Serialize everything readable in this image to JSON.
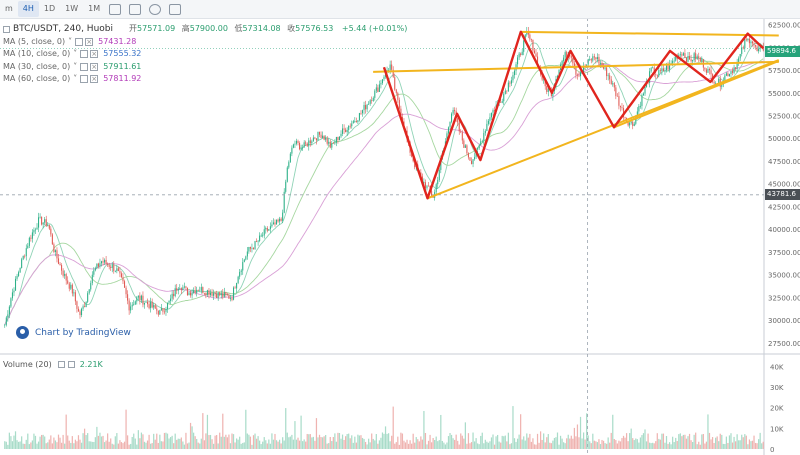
{
  "toolbar": {
    "items": [
      "m",
      "4H",
      "1D",
      "1W",
      "1M"
    ],
    "active": "4H",
    "icons": [
      "candle-style-icon",
      "indicators-icon",
      "settings-icon",
      "fullscreen-icon"
    ]
  },
  "header": {
    "symbol": "BTC/USDT, 240, Huobi",
    "open_label": "开",
    "open": "57571.09",
    "high_label": "高",
    "high": "57900.00",
    "low_label": "低",
    "low": "57314.08",
    "close_label": "收",
    "close": "57576.53",
    "change": "+5.44 (+0.01%)"
  },
  "legend": [
    {
      "label": "MA (5, close, 0)",
      "value": "57431.28",
      "color": "#b23ab8"
    },
    {
      "label": "MA (10, close, 0)",
      "value": "57555.32",
      "color": "#3a73c8"
    },
    {
      "label": "MA (30, close, 0)",
      "value": "57911.61",
      "color": "#2a9d6e"
    },
    {
      "label": "MA (60, close, 0)",
      "value": "57811.92",
      "color": "#b23ab8"
    }
  ],
  "watermark": "Chart by TradingView",
  "volume": {
    "label": "Volume (20)",
    "value": "2.21K"
  },
  "price_tags": {
    "current": "59894.6",
    "crosshair": "43781.6"
  },
  "colors": {
    "up": "#2db088",
    "down": "#e05a54",
    "pattern_red": "#e0251e",
    "pattern_yellow": "#f2b51e"
  },
  "chart_data": {
    "type": "candlestick",
    "symbol": "BTC/USDT",
    "interval": "240",
    "ylim": [
      26500,
      63000
    ],
    "y_ticks": [
      "62500.00",
      "60000.00",
      "57500.00",
      "55000.00",
      "52500.00",
      "50000.00",
      "47500.00",
      "45000.00",
      "42500.00",
      "40000.00",
      "37500.00",
      "35000.00",
      "32500.00",
      "30000.00",
      "27500.00"
    ],
    "vol_ylim": [
      0,
      45000
    ],
    "vol_ticks": [
      "40K",
      "30K",
      "20K",
      "10K",
      "0"
    ],
    "close_path": [
      [
        0,
        29500
      ],
      [
        4,
        32500
      ],
      [
        10,
        36000
      ],
      [
        16,
        39000
      ],
      [
        22,
        41000
      ],
      [
        28,
        40500
      ],
      [
        32,
        37500
      ],
      [
        38,
        35000
      ],
      [
        44,
        33000
      ],
      [
        48,
        30500
      ],
      [
        52,
        32000
      ],
      [
        56,
        35000
      ],
      [
        62,
        36500
      ],
      [
        68,
        36000
      ],
      [
        72,
        35500
      ],
      [
        76,
        34000
      ],
      [
        80,
        31500
      ],
      [
        86,
        32500
      ],
      [
        92,
        31800
      ],
      [
        100,
        30800
      ],
      [
        106,
        32000
      ],
      [
        112,
        34000
      ],
      [
        118,
        33000
      ],
      [
        124,
        33500
      ],
      [
        130,
        33200
      ],
      [
        138,
        32800
      ],
      [
        146,
        32500
      ],
      [
        150,
        35000
      ],
      [
        156,
        37500
      ],
      [
        162,
        38500
      ],
      [
        168,
        39800
      ],
      [
        174,
        40500
      ],
      [
        178,
        41000
      ],
      [
        182,
        47000
      ],
      [
        186,
        49500
      ],
      [
        192,
        49000
      ],
      [
        198,
        50000
      ],
      [
        204,
        50500
      ],
      [
        210,
        49000
      ],
      [
        216,
        50500
      ],
      [
        222,
        51500
      ],
      [
        228,
        52500
      ],
      [
        234,
        54000
      ],
      [
        240,
        55500
      ],
      [
        244,
        57000
      ],
      [
        248,
        58000
      ],
      [
        252,
        54500
      ],
      [
        256,
        52000
      ],
      [
        260,
        49000
      ],
      [
        264,
        47000
      ],
      [
        268,
        45500
      ],
      [
        272,
        44500
      ],
      [
        276,
        43500
      ],
      [
        280,
        47000
      ],
      [
        284,
        50000
      ],
      [
        288,
        53500
      ],
      [
        292,
        51000
      ],
      [
        296,
        49000
      ],
      [
        300,
        47500
      ],
      [
        304,
        48500
      ],
      [
        308,
        50500
      ],
      [
        312,
        52500
      ],
      [
        316,
        53500
      ],
      [
        320,
        54500
      ],
      [
        324,
        56000
      ],
      [
        328,
        57500
      ],
      [
        332,
        59500
      ],
      [
        336,
        61500
      ],
      [
        340,
        60000
      ],
      [
        344,
        57500
      ],
      [
        348,
        55500
      ],
      [
        352,
        55000
      ],
      [
        356,
        57500
      ],
      [
        360,
        59000
      ],
      [
        364,
        59500
      ],
      [
        368,
        57000
      ],
      [
        372,
        57500
      ],
      [
        376,
        58500
      ],
      [
        380,
        59000
      ],
      [
        384,
        58000
      ],
      [
        388,
        57000
      ],
      [
        392,
        55500
      ],
      [
        396,
        53500
      ],
      [
        400,
        52000
      ],
      [
        404,
        51500
      ],
      [
        408,
        53500
      ],
      [
        412,
        55500
      ],
      [
        416,
        57500
      ],
      [
        420,
        57000
      ],
      [
        424,
        57500
      ],
      [
        428,
        58000
      ],
      [
        432,
        59000
      ],
      [
        436,
        59500
      ],
      [
        440,
        58500
      ],
      [
        444,
        59000
      ],
      [
        448,
        58500
      ],
      [
        452,
        57500
      ],
      [
        456,
        56500
      ],
      [
        460,
        56000
      ],
      [
        464,
        57000
      ],
      [
        468,
        57500
      ],
      [
        472,
        58500
      ],
      [
        476,
        60500
      ],
      [
        480,
        61000
      ],
      [
        484,
        59500
      ],
      [
        488,
        59900
      ]
    ],
    "candle_count": 495,
    "highlights": {
      "red_zigzag": [
        [
          244,
          57800
        ],
        [
          272,
          43400
        ],
        [
          291,
          52700
        ],
        [
          306,
          47600
        ],
        [
          332,
          61700
        ],
        [
          352,
          55000
        ],
        [
          364,
          59600
        ],
        [
          392,
          51200
        ],
        [
          428,
          59600
        ],
        [
          454,
          56200
        ],
        [
          478,
          61500
        ],
        [
          488,
          59900
        ]
      ],
      "yellow_lines": [
        {
          "from": [
            237,
            57300
          ],
          "to": [
            498,
            58400
          ]
        },
        {
          "from": [
            332,
            61700
          ],
          "to": [
            498,
            61300
          ]
        },
        {
          "from": [
            272,
            43400
          ],
          "to": [
            498,
            58600
          ]
        },
        {
          "from": [
            392,
            51200
          ],
          "to": [
            498,
            58500
          ]
        }
      ]
    },
    "crosshair": {
      "index": 375,
      "price": 43781.6
    }
  }
}
